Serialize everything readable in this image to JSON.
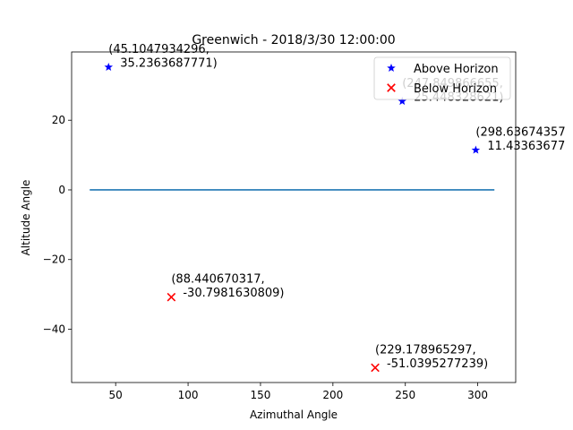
{
  "chart_data": {
    "type": "scatter",
    "title": "Greenwich - 2018/3/30 12:00:00",
    "xlabel": "Azimuthal Angle",
    "ylabel": "Altitude Angle",
    "xlim": [
      19.6,
      326.2
    ],
    "ylim": [
      -55.3,
      39.6
    ],
    "xticks": [
      50,
      100,
      150,
      200,
      250,
      300
    ],
    "yticks": [
      -40,
      -20,
      0,
      20
    ],
    "xtick_labels": [
      "50",
      "100",
      "150",
      "200",
      "250",
      "300"
    ],
    "ytick_labels": [
      "−40",
      "−20",
      "0",
      "20"
    ],
    "horizon_line": {
      "x": [
        32.1,
        311.5
      ],
      "y": [
        0,
        0
      ],
      "color": "#1f77b4"
    },
    "series": [
      {
        "name": "Above Horizon",
        "marker": "star",
        "color": "#0000ff",
        "points": [
          {
            "x": 45.1047934296,
            "y": 35.2363687771,
            "label_line1": "(45.1047934296,",
            "label_line2": "35.2363687771)"
          },
          {
            "x": 247.849866655,
            "y": 25.448328621,
            "label_line1": "(247.849866655,",
            "label_line2": "25.448328621)"
          },
          {
            "x": 298.63674357,
            "y": 11.43363677,
            "label_line1": "(298.63674357",
            "label_line2": "11.43363677"
          }
        ]
      },
      {
        "name": "Below Horizon",
        "marker": "x",
        "color": "#ff0000",
        "points": [
          {
            "x": 88.440670317,
            "y": -30.7981630809,
            "label_line1": "(88.440670317,",
            "label_line2": "-30.7981630809)"
          },
          {
            "x": 229.178965297,
            "y": -51.0395277239,
            "label_line1": "(229.178965297,",
            "label_line2": "-51.0395277239)"
          }
        ]
      }
    ],
    "legend": {
      "position": "top-right",
      "entries": [
        "Above Horizon",
        "Below Horizon"
      ]
    }
  }
}
